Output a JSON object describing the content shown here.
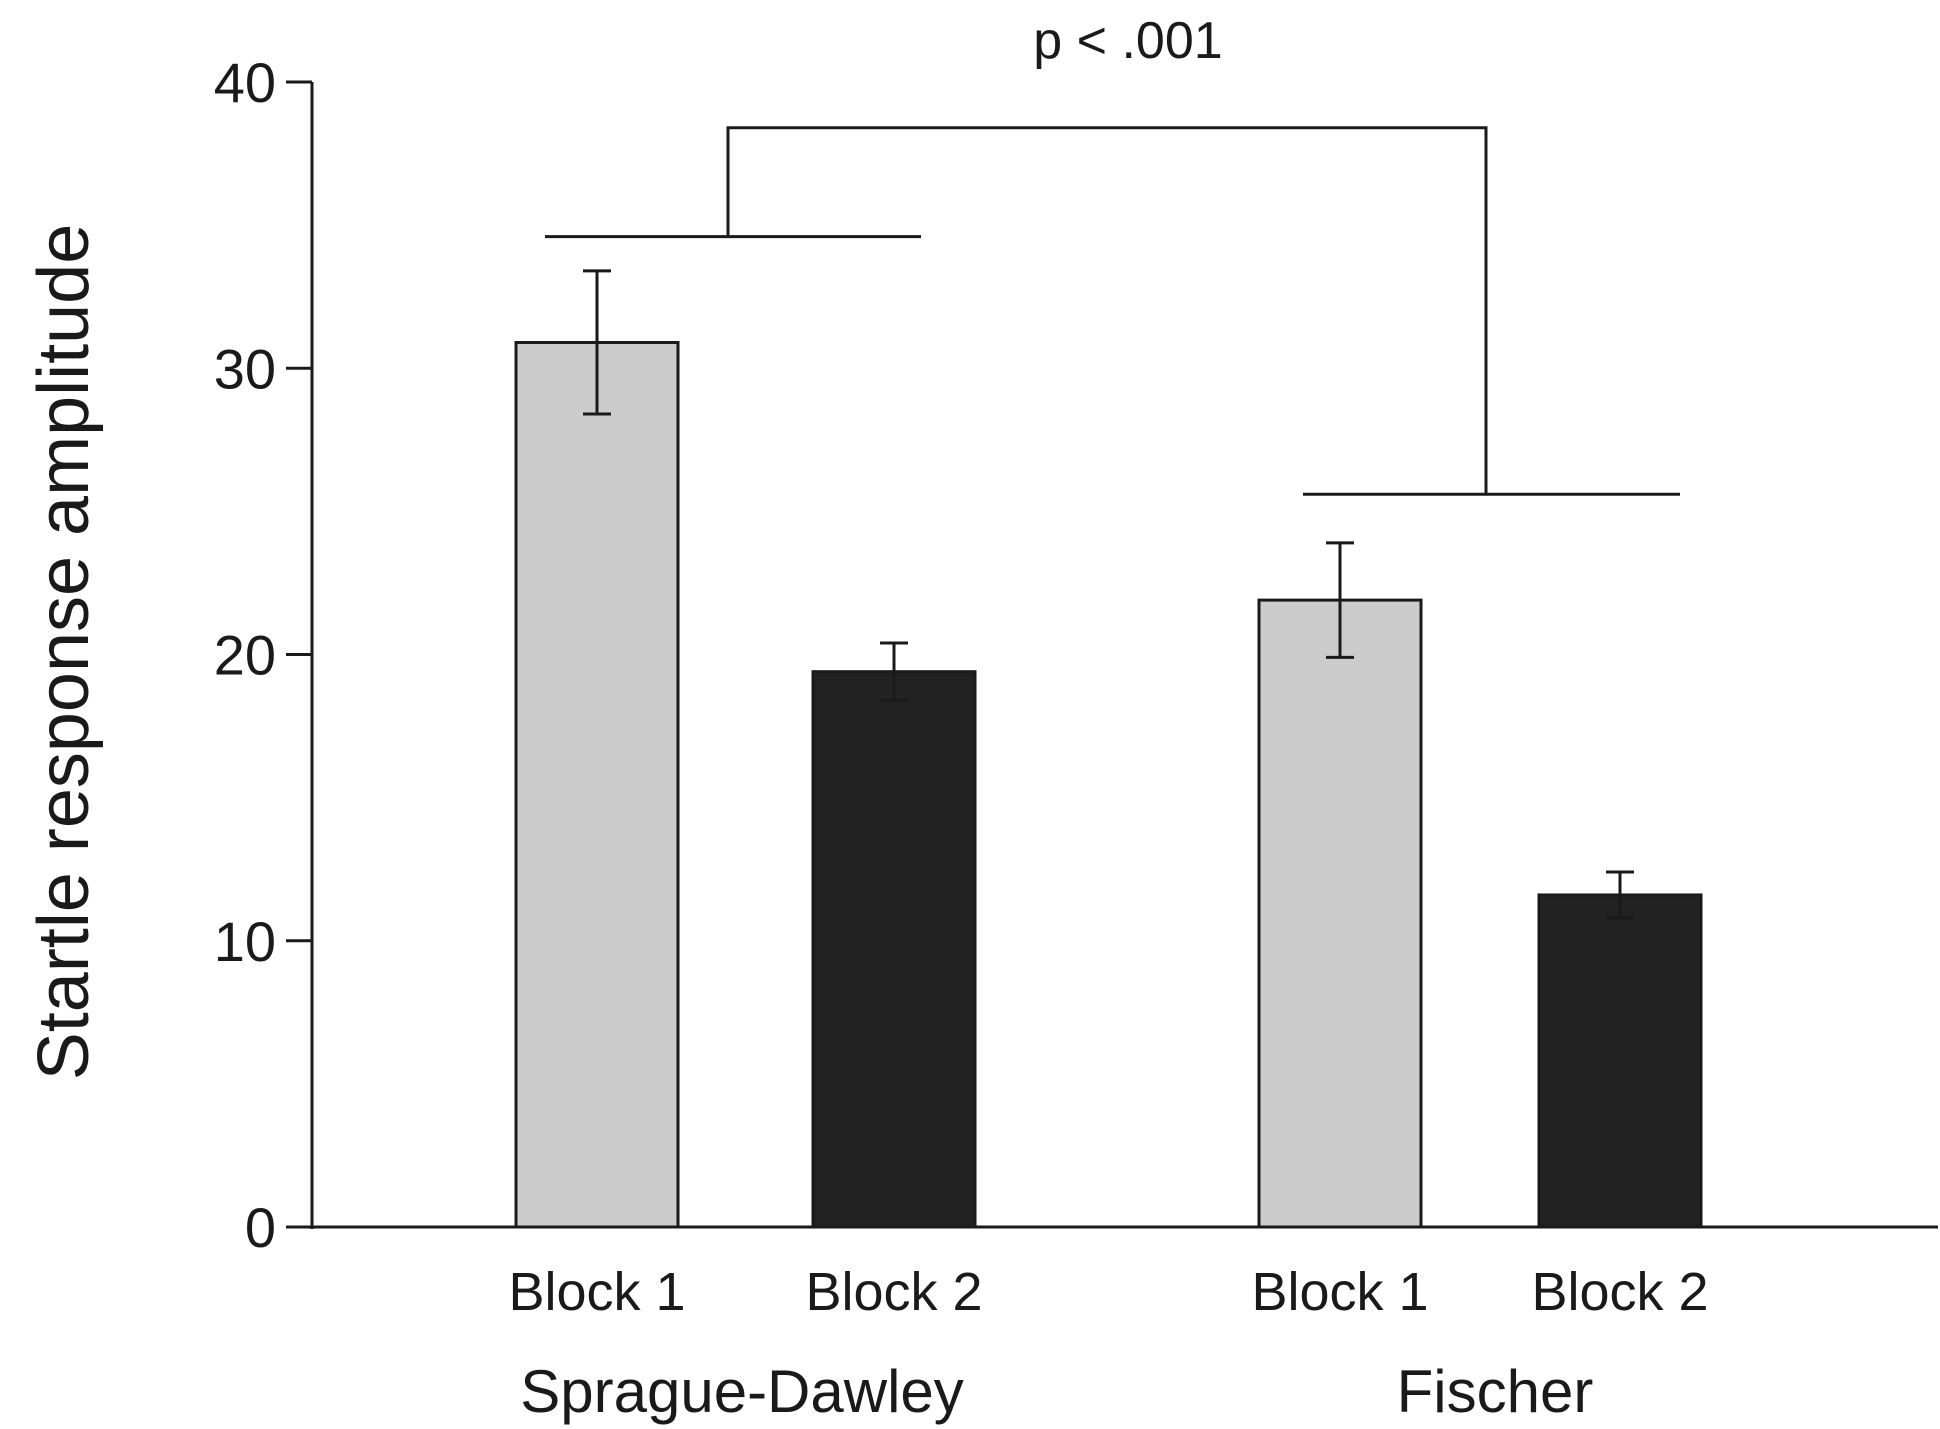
{
  "chart_data": {
    "type": "bar",
    "title": "",
    "ylabel": "Startle response amplitude",
    "ylim": [
      0,
      40
    ],
    "yticks": [
      0,
      10,
      20,
      30,
      40
    ],
    "grid": false,
    "legend": "none",
    "groups": [
      {
        "name": "Sprague-Dawley",
        "bars": [
          {
            "label": "Block 1",
            "value": 30.9,
            "error": 2.5,
            "color": "#cccccc"
          },
          {
            "label": "Block 2",
            "value": 19.4,
            "error": 1.0,
            "color": "#222222"
          }
        ]
      },
      {
        "name": "Fischer",
        "bars": [
          {
            "label": "Block 1",
            "value": 21.9,
            "error": 2.0,
            "color": "#cccccc"
          },
          {
            "label": "Block 2",
            "value": 11.6,
            "error": 0.8,
            "color": "#222222"
          }
        ]
      }
    ],
    "annotations": [
      {
        "text": "p < .001",
        "type": "significance-bracket",
        "left_level": 34.6,
        "right_level": 25.6,
        "top_level": 38.4
      }
    ]
  }
}
